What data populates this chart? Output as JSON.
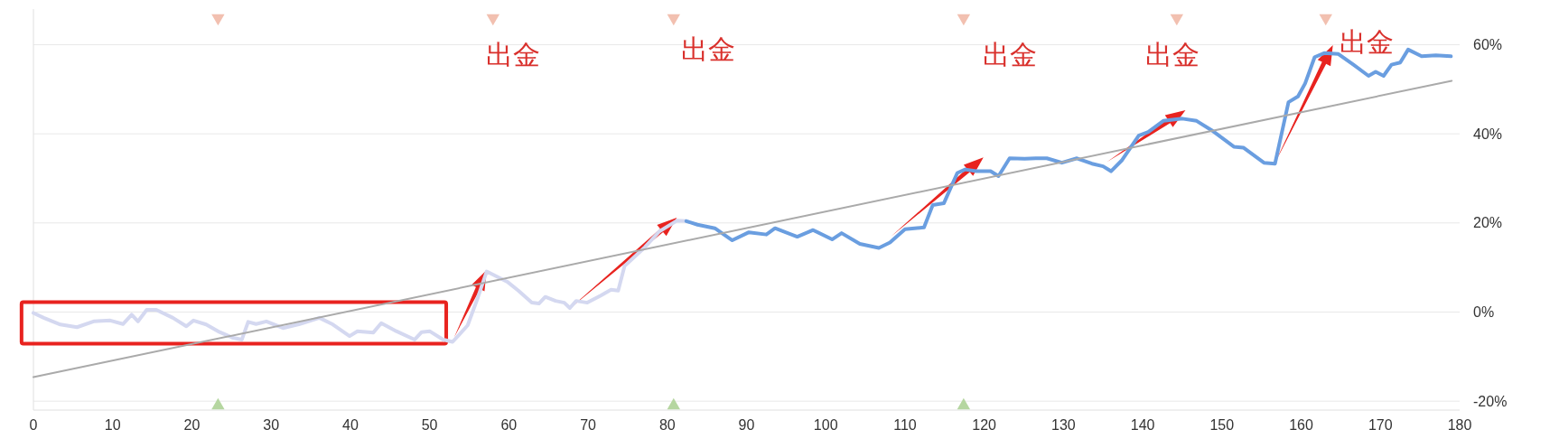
{
  "chart_data": {
    "type": "line",
    "xlim": [
      0,
      180
    ],
    "xticks": [
      0,
      10,
      20,
      30,
      40,
      50,
      60,
      70,
      80,
      90,
      100,
      110,
      120,
      130,
      140,
      150,
      160,
      170,
      180
    ],
    "ylim": [
      -22,
      68
    ],
    "yticks": [
      {
        "value": -20,
        "label": "-20%"
      },
      {
        "value": 0,
        "label": "0%"
      },
      {
        "value": 20,
        "label": "20%"
      },
      {
        "value": 40,
        "label": "40%"
      },
      {
        "value": 60,
        "label": "60%"
      }
    ],
    "grid": "y",
    "marker": "none",
    "line_style": "solid",
    "annotations": [
      "出金",
      "出金",
      "出金",
      "出金",
      "出金"
    ],
    "series": [
      {
        "color": "#d4d8f0",
        "x": [
          0,
          1.3,
          3.4,
          5.5,
          7.6,
          9.7,
          11.3,
          12.4,
          13.2,
          14.3,
          15.5,
          17.6,
          19.3,
          20.2,
          21.8,
          23.5,
          25.2,
          26.3,
          27.1,
          28.1,
          29.4,
          31.5,
          33.6,
          36.1,
          37.8,
          39.9,
          40.9,
          42.9,
          43.9,
          45.8,
          48.1,
          49,
          50,
          51.7,
          52.9,
          54.8,
          56.1,
          57.2,
          59.8,
          61.2,
          62.9,
          63.8,
          64.6,
          65.9,
          67,
          67.7,
          68.5,
          69.9,
          71.6,
          72.9,
          73.8,
          74.6,
          75.5,
          77.2,
          79,
          81.2,
          82.4
        ],
        "values": [
          -0.2,
          -1.3,
          -2.8,
          -3.4,
          -2.1,
          -1.9,
          -2.7,
          -0.6,
          -2.1,
          0.5,
          0.5,
          -1.3,
          -3.2,
          -1.9,
          -2.8,
          -4.5,
          -5.8,
          -6.2,
          -2.2,
          -2.7,
          -2.1,
          -3.6,
          -2.7,
          -1.3,
          -2.8,
          -5.4,
          -4.3,
          -4.6,
          -2.5,
          -4.3,
          -6.2,
          -4.5,
          -4.3,
          -6.2,
          -6.7,
          -3,
          3.3,
          9.1,
          6.8,
          4.8,
          2.1,
          1.9,
          3.4,
          2.5,
          2.1,
          0.9,
          2.5,
          2.1,
          3.7,
          5,
          4.8,
          10.3,
          11.8,
          14.6,
          18.1,
          20.5,
          20.4
        ]
      },
      {
        "color": "#6a9ee0",
        "x": [
          82.4,
          83.8,
          86,
          88.2,
          90.3,
          92.5,
          93.6,
          96.4,
          98.4,
          100.8,
          102,
          104.3,
          106.7,
          108.1,
          110,
          112.4,
          113.5,
          114.9,
          116.6,
          117.6,
          119,
          120.8,
          121.8,
          123.2,
          125.1,
          126.5,
          127.9,
          129.8,
          131.7,
          133.6,
          135,
          136,
          137.4,
          139.5,
          140.7,
          142.6,
          145,
          146.8,
          148.7,
          151.5,
          152.7,
          155.3,
          156.7,
          158.4,
          159.6,
          160.5,
          161.7,
          162.9,
          164.7,
          166.6,
          168.5,
          169.4,
          170.4,
          171.4,
          172.5,
          173.5,
          175.2,
          177,
          178.9
        ],
        "values": [
          20.4,
          19.6,
          18.8,
          16.1,
          17.9,
          17.4,
          18.8,
          16.9,
          18.4,
          16.3,
          17.7,
          15.3,
          14.4,
          15.6,
          18.6,
          19,
          24,
          24.4,
          31.2,
          32,
          31.6,
          31.6,
          30.5,
          34.5,
          34.4,
          34.5,
          34.5,
          33.5,
          34.5,
          33.3,
          32.7,
          31.6,
          34.1,
          39.6,
          40.4,
          42.9,
          43.4,
          42.9,
          40.8,
          37.1,
          36.9,
          33.5,
          33.3,
          47.1,
          48.4,
          51.3,
          57.2,
          58.1,
          57.9,
          55.5,
          53,
          53.9,
          53,
          55.5,
          56,
          58.9,
          57.4,
          57.6,
          57.4
        ]
      },
      {
        "color": "#aaaaaa",
        "x": [
          0,
          179
        ],
        "values": [
          -14.6,
          51.9
        ]
      },
      {
        "type": "scatter",
        "color": "#f2c0b0",
        "marker": "triangle",
        "x": [
          23.3,
          58,
          80.8,
          117.4,
          144.3,
          163.1
        ],
        "values": [
          66,
          66,
          66,
          66,
          66,
          66
        ]
      },
      {
        "type": "scatter",
        "color": "#b5d6a0",
        "marker": "triangle",
        "x": [
          23.3,
          80.8,
          117.4
        ],
        "values": [
          -21,
          -21,
          -21
        ]
      }
    ]
  }
}
